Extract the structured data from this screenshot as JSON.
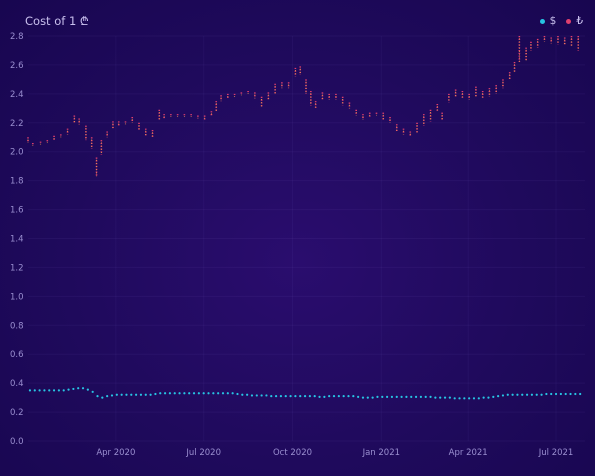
{
  "header": {
    "title": "Cost of 1 ₾"
  },
  "legend": [
    {
      "label": "$",
      "color": "#27c4e3"
    },
    {
      "label": "₺",
      "color": "#e0406e"
    }
  ],
  "chart_data": {
    "type": "line",
    "title": "Cost of 1 ₾",
    "xlabel": "",
    "ylabel": "",
    "ylim": [
      0,
      2.8
    ],
    "xlim": [
      "2020-01-01",
      "2021-07-31"
    ],
    "y_ticks": [
      "0.0",
      "0.2",
      "0.4",
      "0.6",
      "0.8",
      "1.0",
      "1.2",
      "1.4",
      "1.6",
      "1.8",
      "2.0",
      "2.2",
      "2.4",
      "2.6",
      "2.8"
    ],
    "x_ticks": [
      {
        "date": "2020-04-01",
        "label": "Apr 2020"
      },
      {
        "date": "2020-07-01",
        "label": "Jul 2020"
      },
      {
        "date": "2020-10-01",
        "label": "Oct 2020"
      },
      {
        "date": "2021-01-01",
        "label": "Jan 2021"
      },
      {
        "date": "2021-04-01",
        "label": "Apr 2021"
      },
      {
        "date": "2021-07-01",
        "label": "Jul 2021"
      }
    ],
    "grid": true,
    "legend_position": "top-right",
    "series": [
      {
        "name": "$",
        "color": "#27c4e3",
        "style": "dotted",
        "points": [
          [
            "2020-01-03",
            0.35
          ],
          [
            "2020-01-08",
            0.35
          ],
          [
            "2020-01-13",
            0.35
          ],
          [
            "2020-01-18",
            0.35
          ],
          [
            "2020-01-23",
            0.35
          ],
          [
            "2020-01-28",
            0.35
          ],
          [
            "2020-02-02",
            0.35
          ],
          [
            "2020-02-07",
            0.35
          ],
          [
            "2020-02-12",
            0.355
          ],
          [
            "2020-02-17",
            0.36
          ],
          [
            "2020-02-22",
            0.365
          ],
          [
            "2020-02-27",
            0.365
          ],
          [
            "2020-03-03",
            0.355
          ],
          [
            "2020-03-08",
            0.34
          ],
          [
            "2020-03-13",
            0.31
          ],
          [
            "2020-03-18",
            0.3
          ],
          [
            "2020-03-23",
            0.31
          ],
          [
            "2020-03-28",
            0.315
          ],
          [
            "2020-04-02",
            0.32
          ],
          [
            "2020-04-07",
            0.32
          ],
          [
            "2020-04-12",
            0.32
          ],
          [
            "2020-04-17",
            0.32
          ],
          [
            "2020-04-22",
            0.32
          ],
          [
            "2020-04-27",
            0.32
          ],
          [
            "2020-05-02",
            0.32
          ],
          [
            "2020-05-07",
            0.32
          ],
          [
            "2020-05-12",
            0.325
          ],
          [
            "2020-05-17",
            0.33
          ],
          [
            "2020-05-22",
            0.33
          ],
          [
            "2020-05-27",
            0.33
          ],
          [
            "2020-06-01",
            0.33
          ],
          [
            "2020-06-06",
            0.33
          ],
          [
            "2020-06-11",
            0.33
          ],
          [
            "2020-06-16",
            0.33
          ],
          [
            "2020-06-21",
            0.33
          ],
          [
            "2020-06-26",
            0.33
          ],
          [
            "2020-07-01",
            0.33
          ],
          [
            "2020-07-06",
            0.33
          ],
          [
            "2020-07-11",
            0.33
          ],
          [
            "2020-07-16",
            0.33
          ],
          [
            "2020-07-21",
            0.33
          ],
          [
            "2020-07-26",
            0.33
          ],
          [
            "2020-07-31",
            0.33
          ],
          [
            "2020-08-05",
            0.325
          ],
          [
            "2020-08-10",
            0.32
          ],
          [
            "2020-08-15",
            0.32
          ],
          [
            "2020-08-20",
            0.315
          ],
          [
            "2020-08-25",
            0.315
          ],
          [
            "2020-08-30",
            0.315
          ],
          [
            "2020-09-04",
            0.315
          ],
          [
            "2020-09-09",
            0.31
          ],
          [
            "2020-09-14",
            0.31
          ],
          [
            "2020-09-19",
            0.31
          ],
          [
            "2020-09-24",
            0.31
          ],
          [
            "2020-09-29",
            0.31
          ],
          [
            "2020-10-04",
            0.31
          ],
          [
            "2020-10-09",
            0.31
          ],
          [
            "2020-10-14",
            0.31
          ],
          [
            "2020-10-19",
            0.31
          ],
          [
            "2020-10-24",
            0.31
          ],
          [
            "2020-10-29",
            0.305
          ],
          [
            "2020-11-03",
            0.305
          ],
          [
            "2020-11-08",
            0.31
          ],
          [
            "2020-11-13",
            0.31
          ],
          [
            "2020-11-18",
            0.31
          ],
          [
            "2020-11-23",
            0.31
          ],
          [
            "2020-11-28",
            0.31
          ],
          [
            "2020-12-03",
            0.31
          ],
          [
            "2020-12-08",
            0.305
          ],
          [
            "2020-12-13",
            0.3
          ],
          [
            "2020-12-18",
            0.3
          ],
          [
            "2020-12-23",
            0.3
          ],
          [
            "2020-12-28",
            0.305
          ],
          [
            "2021-01-02",
            0.305
          ],
          [
            "2021-01-07",
            0.305
          ],
          [
            "2021-01-12",
            0.305
          ],
          [
            "2021-01-17",
            0.305
          ],
          [
            "2021-01-22",
            0.305
          ],
          [
            "2021-01-27",
            0.305
          ],
          [
            "2021-02-01",
            0.305
          ],
          [
            "2021-02-06",
            0.305
          ],
          [
            "2021-02-11",
            0.305
          ],
          [
            "2021-02-16",
            0.305
          ],
          [
            "2021-02-21",
            0.305
          ],
          [
            "2021-02-26",
            0.3
          ],
          [
            "2021-03-03",
            0.3
          ],
          [
            "2021-03-08",
            0.3
          ],
          [
            "2021-03-13",
            0.3
          ],
          [
            "2021-03-18",
            0.295
          ],
          [
            "2021-03-23",
            0.295
          ],
          [
            "2021-03-28",
            0.295
          ],
          [
            "2021-04-02",
            0.295
          ],
          [
            "2021-04-07",
            0.295
          ],
          [
            "2021-04-12",
            0.295
          ],
          [
            "2021-04-17",
            0.3
          ],
          [
            "2021-04-22",
            0.3
          ],
          [
            "2021-04-27",
            0.305
          ],
          [
            "2021-05-02",
            0.31
          ],
          [
            "2021-05-07",
            0.315
          ],
          [
            "2021-05-12",
            0.32
          ],
          [
            "2021-05-17",
            0.32
          ],
          [
            "2021-05-22",
            0.32
          ],
          [
            "2021-05-27",
            0.32
          ],
          [
            "2021-06-01",
            0.32
          ],
          [
            "2021-06-06",
            0.32
          ],
          [
            "2021-06-11",
            0.32
          ],
          [
            "2021-06-16",
            0.32
          ],
          [
            "2021-06-21",
            0.325
          ],
          [
            "2021-06-26",
            0.325
          ],
          [
            "2021-07-01",
            0.325
          ],
          [
            "2021-07-06",
            0.325
          ],
          [
            "2021-07-11",
            0.325
          ],
          [
            "2021-07-16",
            0.325
          ],
          [
            "2021-07-21",
            0.325
          ],
          [
            "2021-07-26",
            0.325
          ]
        ]
      },
      {
        "name": "₺",
        "color": "#e0406e",
        "style": "range-bars",
        "ranges": [
          [
            "2020-01-01",
            2.06,
            2.1
          ],
          [
            "2020-01-06",
            2.04,
            2.06
          ],
          [
            "2020-01-14",
            2.05,
            2.07
          ],
          [
            "2020-01-21",
            2.06,
            2.08
          ],
          [
            "2020-01-28",
            2.08,
            2.11
          ],
          [
            "2020-02-04",
            2.1,
            2.12
          ],
          [
            "2020-02-11",
            2.12,
            2.16
          ],
          [
            "2020-02-18",
            2.2,
            2.25
          ],
          [
            "2020-02-23",
            2.19,
            2.23
          ],
          [
            "2020-03-01",
            2.08,
            2.18
          ],
          [
            "2020-03-07",
            2.02,
            2.1
          ],
          [
            "2020-03-12",
            1.83,
            1.96
          ],
          [
            "2020-03-17",
            1.98,
            2.08
          ],
          [
            "2020-03-23",
            2.1,
            2.14
          ],
          [
            "2020-03-29",
            2.16,
            2.21
          ],
          [
            "2020-04-04",
            2.18,
            2.21
          ],
          [
            "2020-04-11",
            2.19,
            2.21
          ],
          [
            "2020-04-18",
            2.2,
            2.24
          ],
          [
            "2020-04-25",
            2.15,
            2.2
          ],
          [
            "2020-05-02",
            2.11,
            2.16
          ],
          [
            "2020-05-09",
            2.1,
            2.15
          ],
          [
            "2020-05-16",
            2.22,
            2.29
          ],
          [
            "2020-05-21",
            2.23,
            2.26
          ],
          [
            "2020-05-28",
            2.24,
            2.26
          ],
          [
            "2020-06-04",
            2.24,
            2.26
          ],
          [
            "2020-06-11",
            2.24,
            2.26
          ],
          [
            "2020-06-18",
            2.24,
            2.26
          ],
          [
            "2020-06-25",
            2.23,
            2.25
          ],
          [
            "2020-07-02",
            2.22,
            2.25
          ],
          [
            "2020-07-09",
            2.25,
            2.28
          ],
          [
            "2020-07-14",
            2.28,
            2.35
          ],
          [
            "2020-07-19",
            2.35,
            2.39
          ],
          [
            "2020-07-26",
            2.37,
            2.4
          ],
          [
            "2020-08-02",
            2.38,
            2.4
          ],
          [
            "2020-08-09",
            2.39,
            2.41
          ],
          [
            "2020-08-16",
            2.4,
            2.42
          ],
          [
            "2020-08-23",
            2.37,
            2.41
          ],
          [
            "2020-08-30",
            2.31,
            2.38
          ],
          [
            "2020-09-06",
            2.36,
            2.41
          ],
          [
            "2020-09-13",
            2.4,
            2.47
          ],
          [
            "2020-09-20",
            2.44,
            2.48
          ],
          [
            "2020-09-27",
            2.44,
            2.48
          ],
          [
            "2020-10-04",
            2.52,
            2.58
          ],
          [
            "2020-10-09",
            2.53,
            2.59
          ],
          [
            "2020-10-15",
            2.4,
            2.5
          ],
          [
            "2020-10-20",
            2.32,
            2.42
          ],
          [
            "2020-10-25",
            2.3,
            2.35
          ],
          [
            "2020-11-01",
            2.36,
            2.41
          ],
          [
            "2020-11-08",
            2.36,
            2.4
          ],
          [
            "2020-11-15",
            2.36,
            2.4
          ],
          [
            "2020-11-22",
            2.32,
            2.38
          ],
          [
            "2020-11-29",
            2.3,
            2.34
          ],
          [
            "2020-12-06",
            2.25,
            2.29
          ],
          [
            "2020-12-13",
            2.22,
            2.26
          ],
          [
            "2020-12-20",
            2.24,
            2.27
          ],
          [
            "2020-12-27",
            2.25,
            2.27
          ],
          [
            "2021-01-03",
            2.22,
            2.27
          ],
          [
            "2021-01-10",
            2.2,
            2.24
          ],
          [
            "2021-01-17",
            2.14,
            2.19
          ],
          [
            "2021-01-24",
            2.12,
            2.16
          ],
          [
            "2021-01-31",
            2.11,
            2.14
          ],
          [
            "2021-02-07",
            2.13,
            2.2
          ],
          [
            "2021-02-14",
            2.18,
            2.26
          ],
          [
            "2021-02-21",
            2.21,
            2.29
          ],
          [
            "2021-02-28",
            2.28,
            2.33
          ],
          [
            "2021-03-05",
            2.22,
            2.27
          ],
          [
            "2021-03-12",
            2.34,
            2.4
          ],
          [
            "2021-03-19",
            2.38,
            2.43
          ],
          [
            "2021-03-26",
            2.37,
            2.42
          ],
          [
            "2021-04-02",
            2.36,
            2.4
          ],
          [
            "2021-04-09",
            2.38,
            2.45
          ],
          [
            "2021-04-16",
            2.37,
            2.42
          ],
          [
            "2021-04-23",
            2.38,
            2.44
          ],
          [
            "2021-04-30",
            2.4,
            2.46
          ],
          [
            "2021-05-07",
            2.44,
            2.5
          ],
          [
            "2021-05-14",
            2.5,
            2.55
          ],
          [
            "2021-05-19",
            2.55,
            2.62
          ],
          [
            "2021-05-24",
            2.62,
            2.8
          ],
          [
            "2021-05-31",
            2.63,
            2.72
          ],
          [
            "2021-06-05",
            2.7,
            2.76
          ],
          [
            "2021-06-12",
            2.72,
            2.78
          ],
          [
            "2021-06-19",
            2.76,
            2.8
          ],
          [
            "2021-06-26",
            2.75,
            2.79
          ],
          [
            "2021-07-03",
            2.74,
            2.8
          ],
          [
            "2021-07-10",
            2.74,
            2.79
          ],
          [
            "2021-07-17",
            2.73,
            2.8
          ],
          [
            "2021-07-24",
            2.7,
            2.8
          ]
        ]
      }
    ]
  }
}
